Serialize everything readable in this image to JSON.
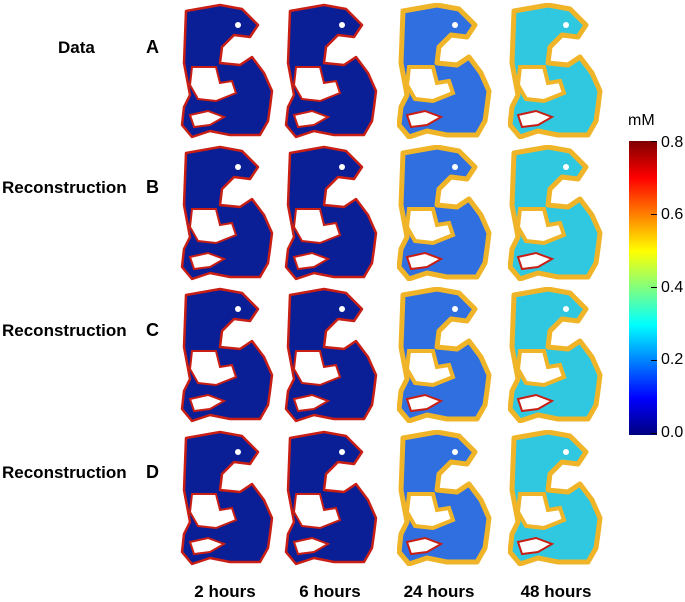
{
  "rows": [
    {
      "label": "Data",
      "letter": "A"
    },
    {
      "label": "Reconstruction",
      "letter": "B"
    },
    {
      "label": "Reconstruction",
      "letter": "C"
    },
    {
      "label": "Reconstruction",
      "letter": "D"
    }
  ],
  "columns": [
    "2 hours",
    "6 hours",
    "24 hours",
    "48 hours"
  ],
  "colorbar": {
    "unit": "mM",
    "ticks": [
      "0.8",
      "0.6",
      "0.4",
      "0.2",
      "0.0"
    ],
    "range": [
      0.0,
      0.8
    ],
    "colormap": [
      "#00007f",
      "#0000ff",
      "#0080ff",
      "#00ffff",
      "#80ff80",
      "#ffff00",
      "#ff8000",
      "#ff0000",
      "#7f0000"
    ]
  },
  "tissue_colors": {
    "low": "#0a1e96",
    "mid": "#2f6fe0",
    "high": "#30c8e0",
    "edge_hot": "#c81e14",
    "edge_warm": "#f0b428"
  }
}
